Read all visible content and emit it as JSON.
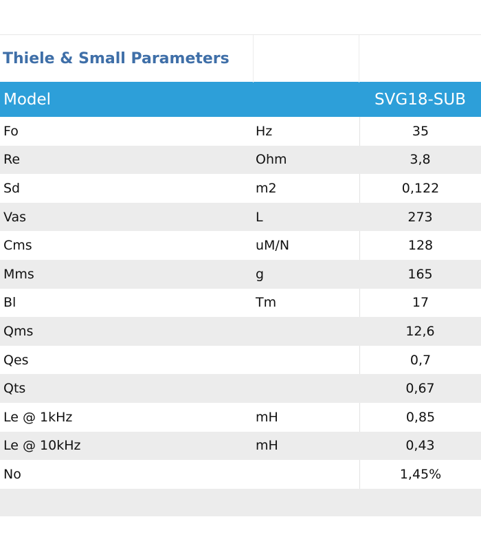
{
  "title": "Thiele & Small Parameters",
  "header": {
    "col1": "Model",
    "col2": "",
    "col3": "SVG18-SUB"
  },
  "rows": [
    {
      "param": "Fo",
      "unit": "Hz",
      "value": "35"
    },
    {
      "param": "Re",
      "unit": "Ohm",
      "value": "3,8"
    },
    {
      "param": "Sd",
      "unit": "m2",
      "value": "0,122"
    },
    {
      "param": "Vas",
      "unit": "L",
      "value": "273"
    },
    {
      "param": "Cms",
      "unit": "uM/N",
      "value": "128"
    },
    {
      "param": "Mms",
      "unit": "g",
      "value": "165"
    },
    {
      "param": "Bl",
      "unit": "Tm",
      "value": "17"
    },
    {
      "param": "Qms",
      "unit": "",
      "value": "12,6"
    },
    {
      "param": "Qes",
      "unit": "",
      "value": "0,7"
    },
    {
      "param": "Qts",
      "unit": "",
      "value": "0,67"
    },
    {
      "param": "Le @ 1kHz",
      "unit": "mH",
      "value": "0,85"
    },
    {
      "param": "Le @ 10kHz",
      "unit": "mH",
      "value": "0,43"
    },
    {
      "param": "No",
      "unit": "",
      "value": "1,45%"
    }
  ],
  "colors": {
    "title": "#3f6fa8",
    "header_bg": "#2d9fd9",
    "stripe": "#ececec"
  }
}
